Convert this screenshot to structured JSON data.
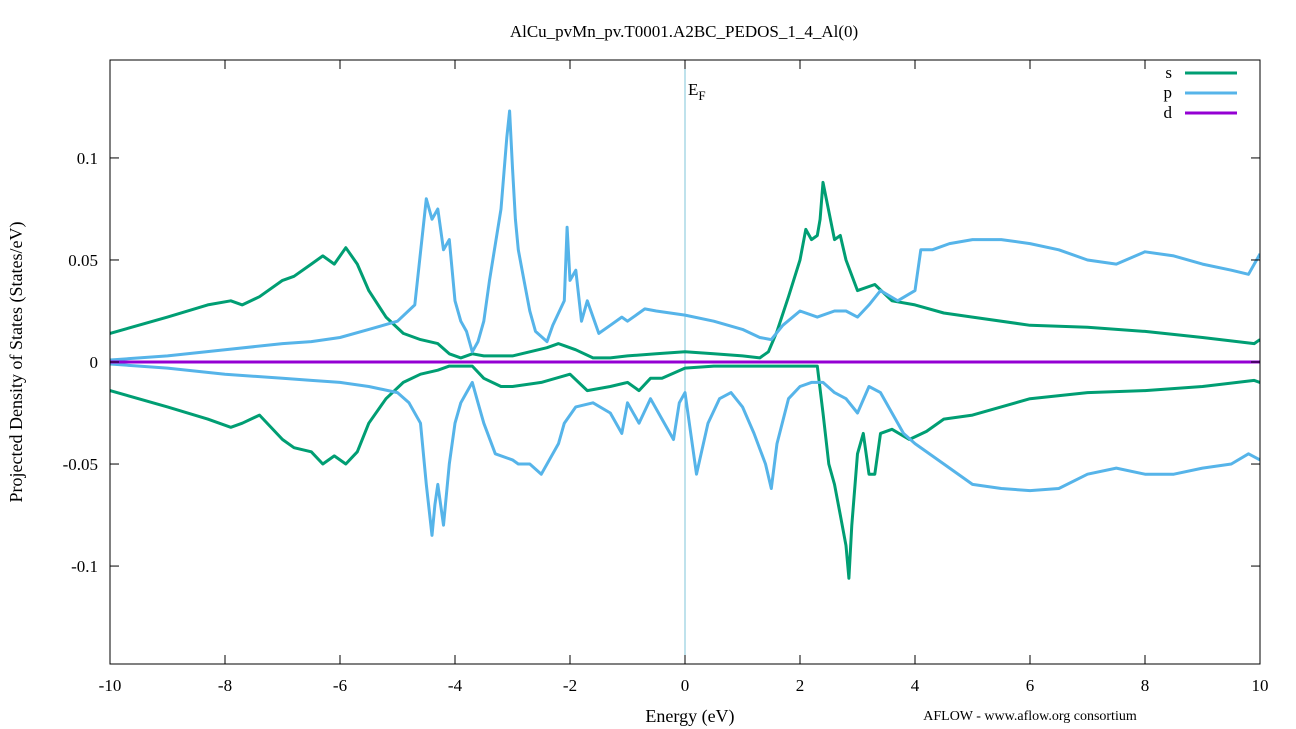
{
  "chart_data": {
    "type": "line",
    "title": "AlCu_pvMn_pv.T0001.A2BC_PEDOS_1_4_Al(0)",
    "xlabel": "Energy (eV)",
    "ylabel": "Projected Density of States (States/eV)",
    "xlim": [
      -10,
      10
    ],
    "ylim": [
      -0.148,
      0.148
    ],
    "xticks": [
      -10,
      -8,
      -6,
      -4,
      -2,
      0,
      2,
      4,
      6,
      8,
      10
    ],
    "xtick_labels": [
      "-10",
      "-8",
      "-6",
      "-4",
      "-2",
      "0",
      "2",
      "4",
      "6",
      "8",
      "10"
    ],
    "yticks": [
      -0.1,
      -0.05,
      0,
      0.05,
      0.1
    ],
    "ytick_labels": [
      "-0.1",
      "-0.05",
      "0",
      "0.05",
      "0.1"
    ],
    "grid": false,
    "legend_position": "top-right",
    "fermi_line": {
      "x": 0,
      "label_main": "E",
      "label_sub": "F",
      "color": "#7fc4da"
    },
    "credit": "AFLOW - www.aflow.org consortium",
    "series": [
      {
        "name": "s",
        "color": "#009e73",
        "x": [
          -10,
          -9,
          -8.3,
          -7.9,
          -7.7,
          -7.4,
          -7.0,
          -6.8,
          -6.5,
          -6.3,
          -6.1,
          -5.9,
          -5.7,
          -5.5,
          -5.2,
          -4.9,
          -4.6,
          -4.3,
          -4.1,
          -3.9,
          -3.7,
          -3.5,
          -3.2,
          -3.0,
          -2.7,
          -2.4,
          -2.2,
          -2.1,
          -1.9,
          -1.6,
          -1.3,
          -1.0,
          -0.5,
          0,
          0.5,
          1.0,
          1.3,
          1.45,
          1.6,
          1.8,
          2.0,
          2.1,
          2.2,
          2.3,
          2.35,
          2.4,
          2.6,
          2.7,
          2.8,
          3.0,
          3.3,
          3.6,
          4.0,
          4.5,
          5.0,
          6.0,
          7.0,
          8.0,
          9.0,
          9.9,
          10
        ],
        "y": [
          0.014,
          0.022,
          0.028,
          0.03,
          0.028,
          0.032,
          0.04,
          0.042,
          0.048,
          0.052,
          0.048,
          0.056,
          0.048,
          0.035,
          0.022,
          0.014,
          0.011,
          0.009,
          0.004,
          0.002,
          0.004,
          0.003,
          0.003,
          0.003,
          0.005,
          0.007,
          0.009,
          0.008,
          0.006,
          0.002,
          0.002,
          0.003,
          0.004,
          0.005,
          0.004,
          0.003,
          0.002,
          0.005,
          0.015,
          0.032,
          0.05,
          0.065,
          0.06,
          0.062,
          0.07,
          0.088,
          0.06,
          0.062,
          0.05,
          0.035,
          0.038,
          0.03,
          0.028,
          0.024,
          0.022,
          0.018,
          0.017,
          0.015,
          0.012,
          0.009,
          0.011
        ]
      },
      {
        "name": "",
        "color": "#009e73",
        "x": [
          -10,
          -9,
          -8.3,
          -7.9,
          -7.7,
          -7.4,
          -7.0,
          -6.8,
          -6.5,
          -6.3,
          -6.1,
          -5.9,
          -5.7,
          -5.5,
          -5.2,
          -4.9,
          -4.6,
          -4.3,
          -4.1,
          -3.9,
          -3.7,
          -3.5,
          -3.2,
          -3.0,
          -2.5,
          -2.0,
          -1.7,
          -1.3,
          -1.0,
          -0.8,
          -0.6,
          -0.4,
          0,
          0.5,
          1.0,
          1.5,
          2.0,
          2.3,
          2.4,
          2.5,
          2.6,
          2.7,
          2.8,
          2.85,
          2.9,
          3.0,
          3.1,
          3.2,
          3.3,
          3.4,
          3.6,
          3.9,
          4.2,
          4.5,
          5.0,
          6.0,
          7.0,
          8.0,
          9.0,
          9.9,
          10
        ],
        "y": [
          -0.014,
          -0.022,
          -0.028,
          -0.032,
          -0.03,
          -0.026,
          -0.038,
          -0.042,
          -0.044,
          -0.05,
          -0.046,
          -0.05,
          -0.044,
          -0.03,
          -0.018,
          -0.01,
          -0.006,
          -0.004,
          -0.002,
          -0.002,
          -0.002,
          -0.008,
          -0.012,
          -0.012,
          -0.01,
          -0.006,
          -0.014,
          -0.012,
          -0.01,
          -0.014,
          -0.008,
          -0.008,
          -0.003,
          -0.002,
          -0.002,
          -0.002,
          -0.002,
          -0.002,
          -0.025,
          -0.05,
          -0.06,
          -0.075,
          -0.09,
          -0.106,
          -0.08,
          -0.045,
          -0.035,
          -0.055,
          -0.055,
          -0.035,
          -0.033,
          -0.038,
          -0.034,
          -0.028,
          -0.026,
          -0.018,
          -0.015,
          -0.014,
          -0.012,
          -0.009,
          -0.01
        ]
      },
      {
        "name": "p",
        "color": "#56b4e9",
        "x": [
          -10,
          -9,
          -8,
          -7,
          -6.5,
          -6,
          -5.5,
          -5.0,
          -4.7,
          -4.5,
          -4.4,
          -4.3,
          -4.2,
          -4.1,
          -4.0,
          -3.9,
          -3.8,
          -3.7,
          -3.6,
          -3.5,
          -3.4,
          -3.2,
          -3.1,
          -3.05,
          -3.0,
          -2.95,
          -2.9,
          -2.8,
          -2.7,
          -2.6,
          -2.4,
          -2.3,
          -2.1,
          -2.05,
          -2.0,
          -1.9,
          -1.8,
          -1.7,
          -1.5,
          -1.3,
          -1.1,
          -1.0,
          -0.7,
          -0.5,
          0,
          0.5,
          1.0,
          1.3,
          1.5,
          1.7,
          2.0,
          2.3,
          2.6,
          2.8,
          3.0,
          3.2,
          3.4,
          3.7,
          4.0,
          4.1,
          4.3,
          4.6,
          5.0,
          5.5,
          6.0,
          6.5,
          7.0,
          7.5,
          8.0,
          8.5,
          9.0,
          9.5,
          9.8,
          10
        ],
        "y": [
          0.001,
          0.003,
          0.006,
          0.009,
          0.01,
          0.012,
          0.016,
          0.02,
          0.028,
          0.08,
          0.07,
          0.075,
          0.055,
          0.06,
          0.03,
          0.02,
          0.015,
          0.005,
          0.01,
          0.02,
          0.04,
          0.075,
          0.11,
          0.123,
          0.095,
          0.07,
          0.055,
          0.04,
          0.025,
          0.015,
          0.01,
          0.018,
          0.03,
          0.066,
          0.04,
          0.045,
          0.02,
          0.03,
          0.014,
          0.018,
          0.022,
          0.02,
          0.026,
          0.025,
          0.023,
          0.02,
          0.016,
          0.012,
          0.011,
          0.018,
          0.025,
          0.022,
          0.025,
          0.025,
          0.022,
          0.028,
          0.035,
          0.03,
          0.035,
          0.055,
          0.055,
          0.058,
          0.06,
          0.06,
          0.058,
          0.055,
          0.05,
          0.048,
          0.054,
          0.052,
          0.048,
          0.045,
          0.043,
          0.053
        ]
      },
      {
        "name": "",
        "color": "#56b4e9",
        "x": [
          -10,
          -9,
          -8,
          -7,
          -6.5,
          -6,
          -5.5,
          -5.0,
          -4.8,
          -4.6,
          -4.5,
          -4.4,
          -4.35,
          -4.3,
          -4.2,
          -4.1,
          -4.0,
          -3.9,
          -3.8,
          -3.7,
          -3.6,
          -3.5,
          -3.3,
          -3.0,
          -2.9,
          -2.7,
          -2.5,
          -2.2,
          -2.1,
          -1.9,
          -1.6,
          -1.3,
          -1.1,
          -1.0,
          -0.8,
          -0.6,
          -0.4,
          -0.2,
          -0.1,
          0,
          0.2,
          0.4,
          0.6,
          0.8,
          1.0,
          1.2,
          1.4,
          1.5,
          1.6,
          1.8,
          2.0,
          2.2,
          2.4,
          2.6,
          2.8,
          3.0,
          3.2,
          3.4,
          3.6,
          3.8,
          4.0,
          4.5,
          5.0,
          5.5,
          6.0,
          6.5,
          7.0,
          7.5,
          8.0,
          8.5,
          9.0,
          9.5,
          9.8,
          10
        ],
        "y": [
          -0.001,
          -0.003,
          -0.006,
          -0.008,
          -0.009,
          -0.01,
          -0.012,
          -0.015,
          -0.02,
          -0.03,
          -0.06,
          -0.085,
          -0.07,
          -0.06,
          -0.08,
          -0.05,
          -0.03,
          -0.02,
          -0.015,
          -0.01,
          -0.02,
          -0.03,
          -0.045,
          -0.048,
          -0.05,
          -0.05,
          -0.055,
          -0.04,
          -0.03,
          -0.022,
          -0.02,
          -0.025,
          -0.035,
          -0.02,
          -0.03,
          -0.018,
          -0.028,
          -0.038,
          -0.02,
          -0.015,
          -0.055,
          -0.03,
          -0.018,
          -0.015,
          -0.022,
          -0.035,
          -0.05,
          -0.062,
          -0.04,
          -0.018,
          -0.012,
          -0.01,
          -0.01,
          -0.015,
          -0.018,
          -0.025,
          -0.012,
          -0.015,
          -0.025,
          -0.035,
          -0.04,
          -0.05,
          -0.06,
          -0.062,
          -0.063,
          -0.062,
          -0.055,
          -0.052,
          -0.055,
          -0.055,
          -0.052,
          -0.05,
          -0.045,
          -0.048
        ]
      },
      {
        "name": "d",
        "color": "#9400d3",
        "x": [
          -10,
          10
        ],
        "y": [
          0,
          0
        ]
      }
    ]
  }
}
